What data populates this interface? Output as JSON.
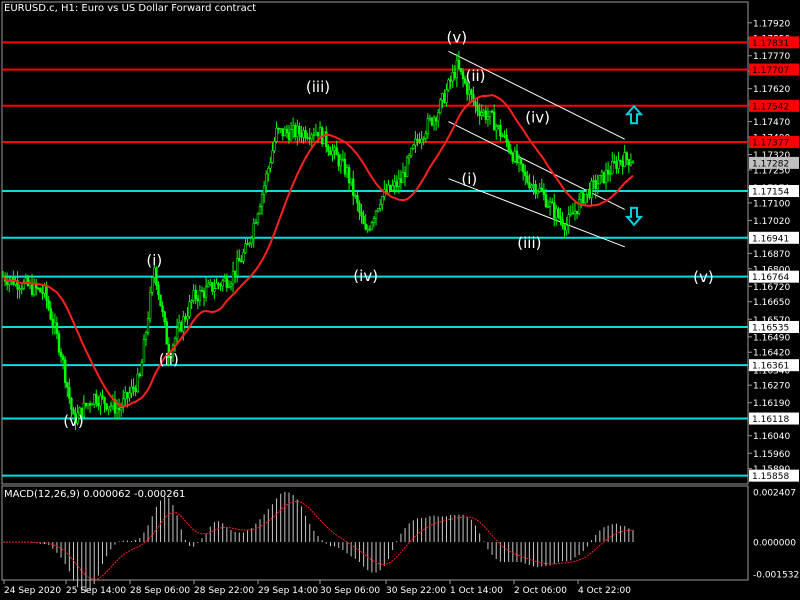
{
  "header": {
    "symbol_line": "EURUSD.c, H1:  Euro vs US Dollar Forward contract",
    "macd_label": "MACD(12,26,9) 0.000062 -0.000261"
  },
  "colors": {
    "background": "#000000",
    "grid": "#9a9a9a",
    "candle_up": "#00ff00",
    "candle_down": "#00ff00",
    "moving_average": "#ff2020",
    "resistance": "#ff0000",
    "support": "#00e0e0",
    "channel": "#ffffff",
    "wave_label": "#ffffff",
    "macd_hist": "#c8c8c8",
    "macd_signal": "#ff2020",
    "arrow": "#00d0e0"
  },
  "chart_data": {
    "type": "candlestick",
    "symbol": "EURUSD.c",
    "timeframe": "H1",
    "price_axis": {
      "min": 1.1582,
      "max": 1.1796,
      "ticks": [
        "1.17920",
        "1.17850",
        "1.17770",
        "1.17700",
        "1.17620",
        "1.17550",
        "1.17470",
        "1.17400",
        "1.17320",
        "1.17250",
        "1.17170",
        "1.17100",
        "1.17020",
        "1.16950",
        "1.16870",
        "1.16800",
        "1.16720",
        "1.16650",
        "1.16570",
        "1.16490",
        "1.16420",
        "1.16340",
        "1.16270",
        "1.16190",
        "1.16110",
        "1.16040",
        "1.15960",
        "1.15890"
      ]
    },
    "time_axis": {
      "labels": [
        "24 Sep 2020",
        "25 Sep 14:00",
        "28 Sep 06:00",
        "28 Sep 22:00",
        "29 Sep 14:00",
        "30 Sep 06:00",
        "30 Sep 22:00",
        "1 Oct 14:00",
        "2 Oct 06:00",
        "4 Oct 22:00"
      ]
    },
    "resistance_levels": [
      {
        "value": 1.17831,
        "label": "1.17831"
      },
      {
        "value": 1.17707,
        "label": "1.17707"
      },
      {
        "value": 1.17542,
        "label": "1.17542"
      },
      {
        "value": 1.17377,
        "label": "1.17377"
      }
    ],
    "support_levels": [
      {
        "value": 1.17154,
        "label": "1.17154"
      },
      {
        "value": 1.16941,
        "label": "1.16941"
      },
      {
        "value": 1.16764,
        "label": "1.16764"
      },
      {
        "value": 1.16535,
        "label": "1.16535"
      },
      {
        "value": 1.16361,
        "label": "1.16361"
      },
      {
        "value": 1.16118,
        "label": "1.16118"
      },
      {
        "value": 1.15858,
        "label": "1.15858"
      }
    ],
    "current_price": {
      "value": 1.17282,
      "label": "1.17282"
    },
    "wave_labels": [
      {
        "text": "(v)",
        "bar": 34,
        "price": 1.16085
      },
      {
        "text": "(i)",
        "bar": 73,
        "price": 1.16815
      },
      {
        "text": "(ii)",
        "bar": 80,
        "price": 1.16365
      },
      {
        "text": "(iii)",
        "bar": 152,
        "price": 1.17605
      },
      {
        "text": "(iv)",
        "bar": 175,
        "price": 1.16745
      },
      {
        "text": "(v)",
        "bar": 219,
        "price": 1.1783
      },
      {
        "text": "(ii)",
        "bar": 228,
        "price": 1.17655
      },
      {
        "text": "(iv)",
        "bar": 258,
        "price": 1.17465
      },
      {
        "text": "(i)",
        "bar": 225,
        "price": 1.17185
      },
      {
        "text": "(iii)",
        "bar": 254,
        "price": 1.16895
      },
      {
        "text": "(v)",
        "bar": 338,
        "price": 1.1674
      }
    ],
    "macd": {
      "params": "MACD(12,26,9)",
      "main": "0.000062",
      "signal": "-0.000261",
      "axis_ticks": [
        "0.002407",
        "0.000000",
        "-0.001532"
      ],
      "min": -0.001532,
      "max": 0.002407
    }
  }
}
